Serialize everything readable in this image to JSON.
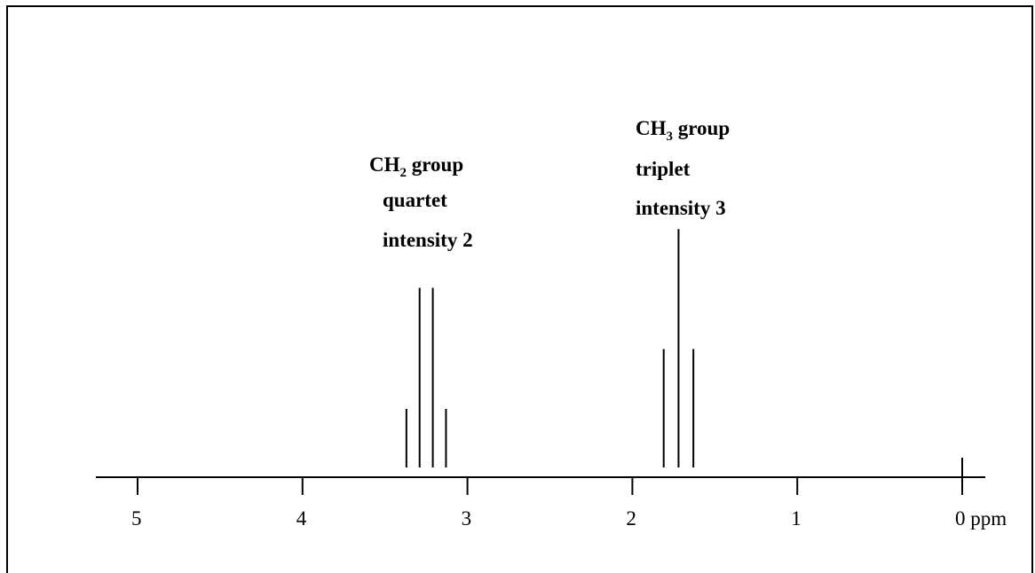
{
  "chart_data": {
    "type": "nmr-stick-spectrum",
    "xaxis": {
      "reversed": true,
      "xlim": [
        5.2,
        -0.15
      ],
      "ticks": [
        5,
        4,
        3,
        2,
        1,
        0
      ],
      "tick_labels": [
        "5",
        "4",
        "3",
        "2",
        "1",
        "0 ppm"
      ]
    },
    "ylim": [
      0,
      1
    ],
    "groups": [
      {
        "name": "CH2 group",
        "multiplicity": "quartet",
        "intensity": 2,
        "peaks": [
          {
            "x": 3.37,
            "y": 0.314
          },
          {
            "x": 3.29,
            "y": 0.964
          },
          {
            "x": 3.21,
            "y": 0.964
          },
          {
            "x": 3.13,
            "y": 0.314
          }
        ]
      },
      {
        "name": "CH3 group",
        "multiplicity": "triplet",
        "intensity": 3,
        "peaks": [
          {
            "x": 1.81,
            "y": 0.636
          },
          {
            "x": 1.72,
            "y": 1.28
          },
          {
            "x": 1.63,
            "y": 0.636
          }
        ]
      }
    ],
    "annotations": [
      {
        "group": "CH2",
        "line1_main": "CH",
        "line1_sub": "2",
        "line1_rest": " group",
        "line2": "quartet",
        "line3": "intensity 2"
      },
      {
        "group": "CH3",
        "line1_main": "CH",
        "line1_sub": "3",
        "line1_rest": " group",
        "line2": "triplet",
        "line3": "intensity 3"
      }
    ]
  }
}
